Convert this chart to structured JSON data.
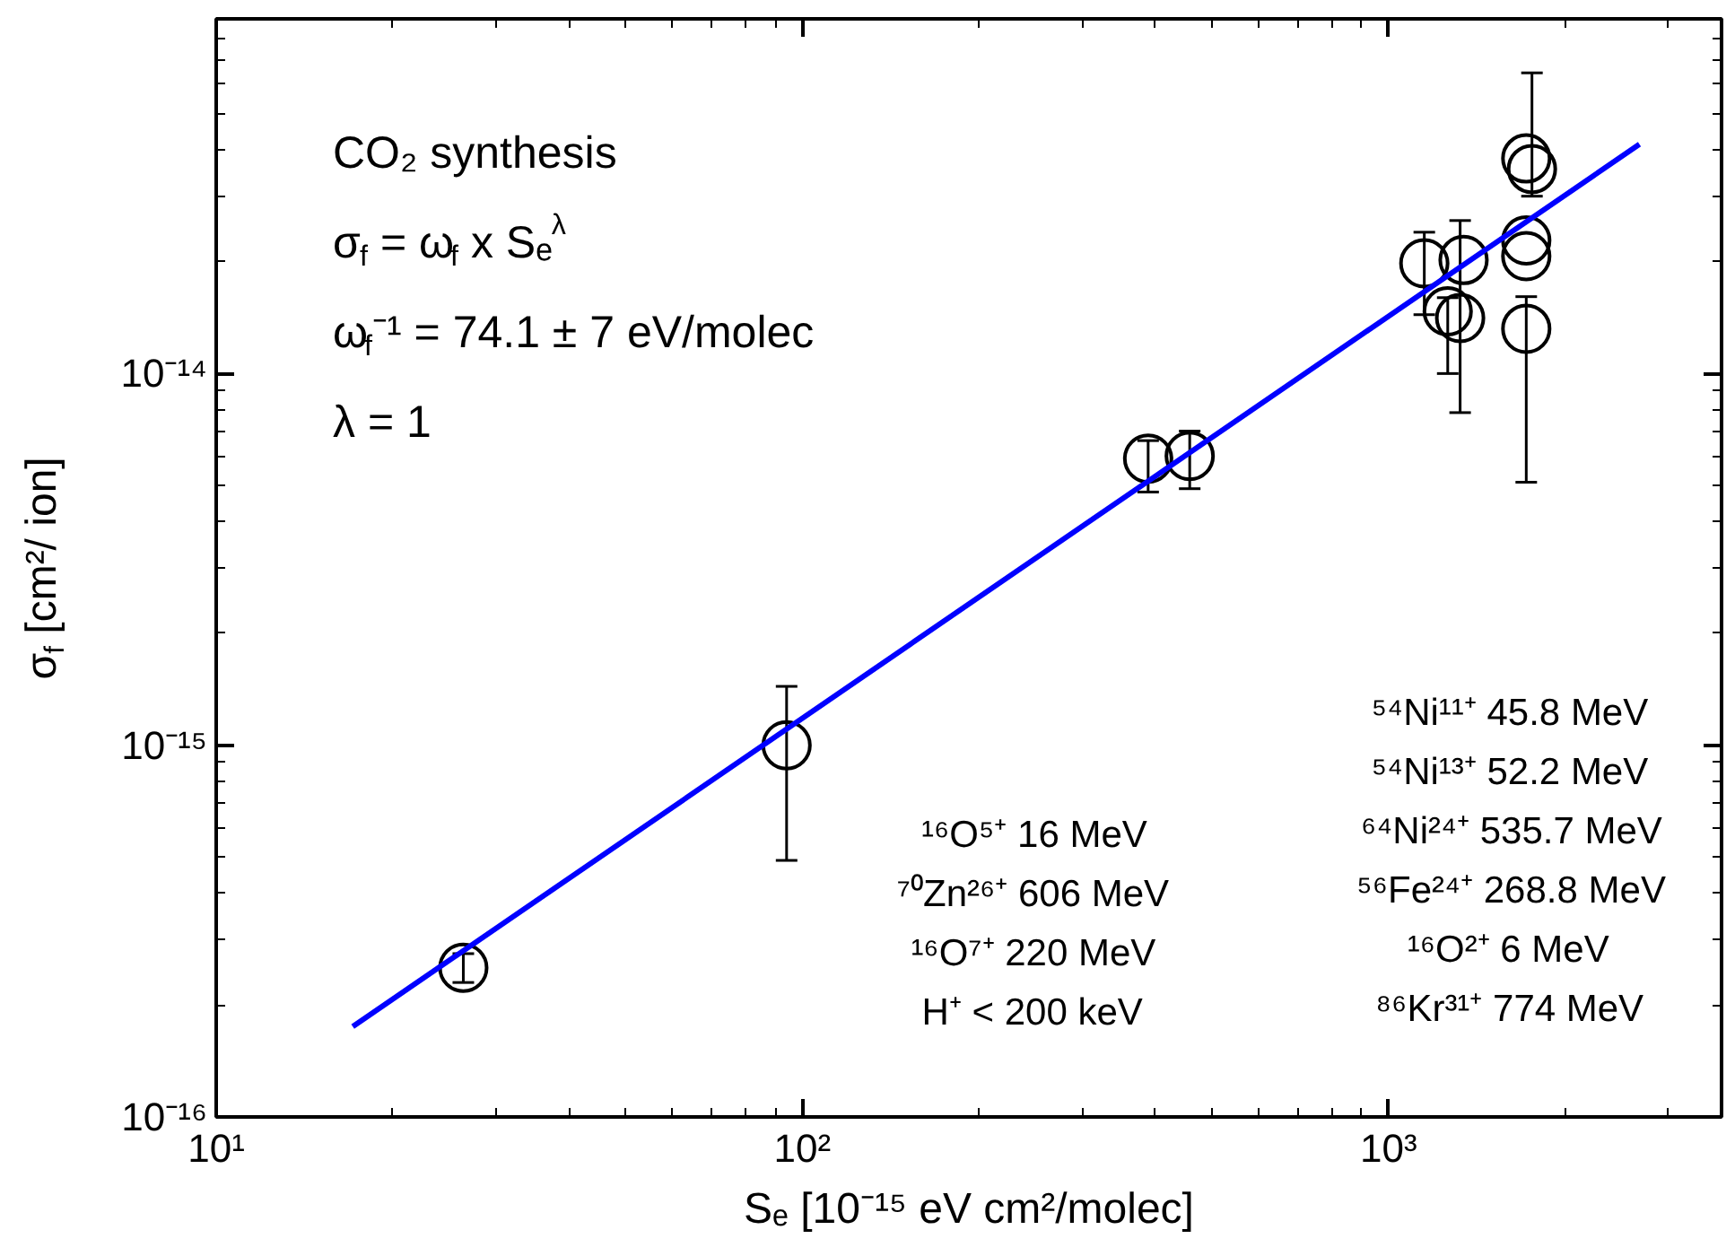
{
  "chart_data": {
    "type": "scatter",
    "xlabel": "Sₑ [10⁻¹⁵ eV cm²/molec]",
    "ylabel": "σ$_{f}$ [cm²/ ion]",
    "log": "xy",
    "grid": false,
    "marker": "circle",
    "xlim": [
      10,
      3700
    ],
    "ylim": [
      1e-16,
      9e-14
    ],
    "xticks": [
      {
        "value": 10,
        "label": "10¹"
      },
      {
        "value": 100,
        "label": "10²"
      },
      {
        "value": 1000,
        "label": "10³"
      }
    ],
    "yticks": [
      {
        "value": 1e-16,
        "label": "10⁻¹⁶"
      },
      {
        "value": 1e-15,
        "label": "10⁻¹⁵"
      },
      {
        "value": 1e-14,
        "label": "10⁻¹⁴"
      }
    ],
    "series": [
      {
        "type": "scatter",
        "color": "#000000",
        "x": [
          26.4,
          94,
          389,
          458,
          1151,
          1262,
          1325,
          1343,
          1718,
          1757,
          1718,
          1718,
          1718
        ],
        "values": [
          2.52e-16,
          1e-15,
          5.9e-15,
          6e-15,
          1.98e-14,
          1.47e-14,
          1.41e-14,
          2.02e-14,
          3.79e-14,
          3.55e-14,
          2.28e-14,
          2.07e-14,
          1.32e-14
        ],
        "errors": [
          [
            2.3e-16,
            2.75e-16
          ],
          [
            4.9e-16,
            1.44e-15
          ],
          [
            4.8e-15,
            6.6e-15
          ],
          [
            4.9e-15,
            7e-15
          ],
          [
            1.44e-14,
            2.4e-14
          ],
          [
            1e-14,
            1.6e-14
          ],
          [
            7.85e-15,
            2.58e-14
          ],
          null,
          null,
          [
            3e-14,
            6.44e-14
          ],
          null,
          null,
          [
            5.1e-15,
            1.61e-14
          ]
        ]
      },
      {
        "type": "line",
        "marker": "none",
        "color": "#0000ff",
        "x": [
          17.1,
          2680
        ],
        "values": [
          1.75e-16,
          4.14e-14
        ]
      }
    ],
    "annotations": [
      "CO₂ synthesis",
      "σ$_{f}$ = ω$_{f}$ x Sₑ$^{λ}$",
      "ω$_{f}$⁻¹ = 74.1 ± 7 eV/molec",
      "λ = 1",
      "¹⁶O⁵⁺ 16 MeV",
      "⁷⁰Zn²⁶⁺ 606 MeV",
      "¹⁶O⁷⁺ 220 MeV",
      "H⁺ < 200 keV",
      "⁵⁴Ni¹¹⁺ 45.8 MeV",
      "⁵⁴Ni¹³⁺ 52.2 MeV",
      "⁶⁴Ni²⁴⁺ 535.7 MeV",
      "⁵⁶Fe²⁴⁺ 268.8 MeV",
      "¹⁶O²⁺ 6 MeV",
      "⁸⁶Kr³¹⁺ 774 MeV"
    ]
  }
}
